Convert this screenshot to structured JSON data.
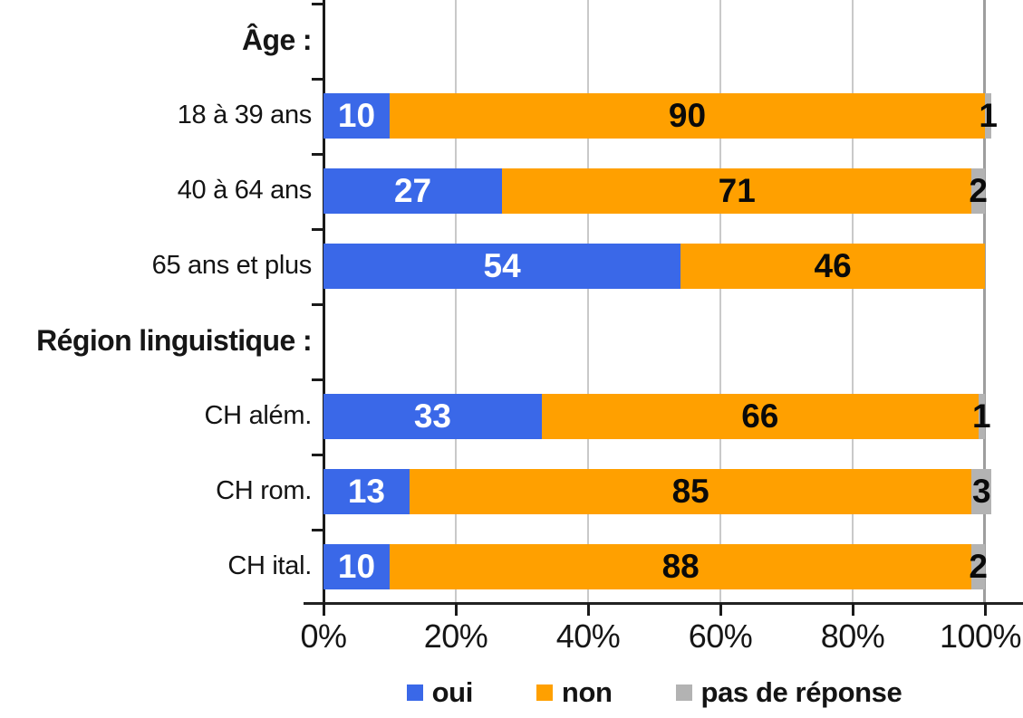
{
  "chart_data": {
    "type": "bar",
    "orientation": "horizontal",
    "stacked": true,
    "unit": "percent",
    "xlim": [
      0,
      100
    ],
    "grid": true,
    "legend_position": "bottom",
    "x_ticks": [
      "0%",
      "20%",
      "40%",
      "60%",
      "80%",
      "100%"
    ],
    "series_names": [
      "oui",
      "non",
      "pas de réponse"
    ],
    "series_colors": [
      "#3a68e8",
      "#ffa000",
      "#b3b3b3"
    ],
    "value_text_colors": [
      "#ffffff",
      "#0a0a0a",
      "#0a0a0a"
    ],
    "groups": [
      {
        "header": "Âge :",
        "rows": [
          {
            "label": "18 à 39 ans",
            "values": [
              10,
              90,
              1
            ]
          },
          {
            "label": "40 à 64 ans",
            "values": [
              27,
              71,
              2
            ]
          },
          {
            "label": "65 ans et plus",
            "values": [
              54,
              46,
              0
            ]
          }
        ]
      },
      {
        "header": "Région linguistique :",
        "rows": [
          {
            "label": "CH além.",
            "values": [
              33,
              66,
              1
            ]
          },
          {
            "label": "CH rom.",
            "values": [
              13,
              85,
              3
            ]
          },
          {
            "label": "CH ital.",
            "values": [
              10,
              88,
              2
            ]
          }
        ]
      }
    ]
  }
}
